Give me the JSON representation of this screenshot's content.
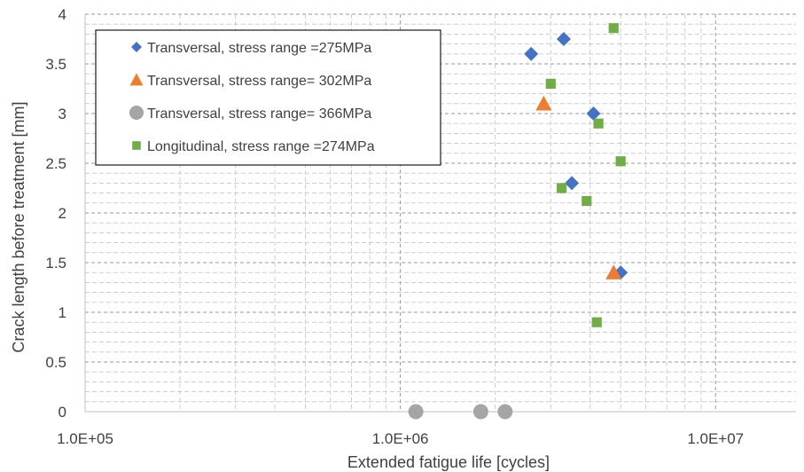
{
  "chart_data": {
    "type": "scatter",
    "xscale": "log",
    "xlabel": "Extended fatigue life [cycles]",
    "ylabel": "Crack length before treatment [mm]",
    "xlim": [
      100000,
      18000000
    ],
    "ylim": [
      0,
      4
    ],
    "x_ticks": [
      {
        "value": 100000,
        "label": "1.0E+05"
      },
      {
        "value": 1000000,
        "label": "1.0E+06"
      },
      {
        "value": 10000000,
        "label": "1.0E+07"
      }
    ],
    "y_ticks": [
      {
        "value": 0,
        "label": "0"
      },
      {
        "value": 0.5,
        "label": "0.5"
      },
      {
        "value": 1,
        "label": "1"
      },
      {
        "value": 1.5,
        "label": "1.5"
      },
      {
        "value": 2,
        "label": "2"
      },
      {
        "value": 2.5,
        "label": "2.5"
      },
      {
        "value": 3,
        "label": "3"
      },
      {
        "value": 3.5,
        "label": "3.5"
      },
      {
        "value": 4,
        "label": "4"
      }
    ],
    "grid": "major and minor, dashed",
    "legend_position": "top-left",
    "series": [
      {
        "name": "Transversal, stress range =275MPa",
        "marker": "diamond",
        "color": "#4472C4",
        "points": [
          [
            2600000,
            3.6
          ],
          [
            3300000,
            3.75
          ],
          [
            4100000,
            3.0
          ],
          [
            3500000,
            2.3
          ],
          [
            5000000,
            1.4
          ]
        ]
      },
      {
        "name": "Transversal, stress range= 302MPa",
        "marker": "triangle",
        "color": "#ED7D31",
        "points": [
          [
            2850000,
            3.1
          ],
          [
            4750000,
            1.4
          ]
        ]
      },
      {
        "name": "Transversal, stress range= 366MPa",
        "marker": "circle",
        "color": "#A5A5A5",
        "points": [
          [
            1120000,
            0
          ],
          [
            1800000,
            0
          ],
          [
            2150000,
            0
          ]
        ]
      },
      {
        "name": "Longitudinal, stress range =274MPa",
        "marker": "square",
        "color": "#70AD47",
        "points": [
          [
            4750000,
            3.86
          ],
          [
            3000000,
            3.3
          ],
          [
            4250000,
            2.9
          ],
          [
            5000000,
            2.52
          ],
          [
            3250000,
            2.25
          ],
          [
            3900000,
            2.12
          ],
          [
            4200000,
            0.9
          ]
        ]
      }
    ]
  }
}
